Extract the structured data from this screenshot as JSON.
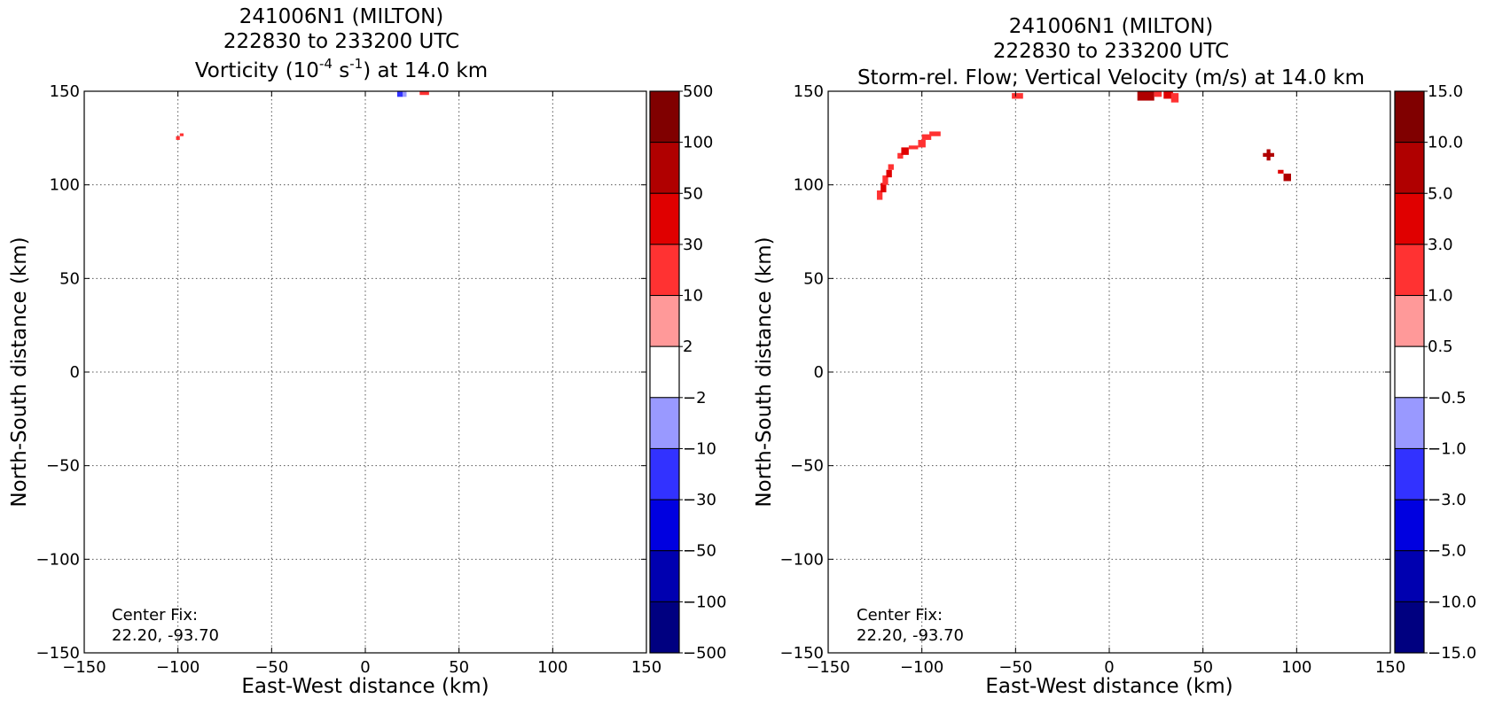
{
  "chart_data": [
    {
      "type": "heatmap",
      "title_line1": "241006N1 (MILTON)",
      "title_line2": "222830 to 233200 UTC",
      "title_line3_prefix": "Vorticity (10",
      "title_line3_exp1": "-4",
      "title_line3_mid": " s",
      "title_line3_exp2": "-1",
      "title_line3_suffix": ") at 14.0 km",
      "xlabel": "East-West distance (km)",
      "ylabel": "North-South distance (km)",
      "xlim": [
        -150,
        150
      ],
      "ylim": [
        -150,
        150
      ],
      "xticks": [
        -150,
        -100,
        -50,
        0,
        50,
        100,
        150
      ],
      "yticks": [
        -150,
        -100,
        -50,
        0,
        50,
        100,
        150
      ],
      "xtick_labels": [
        "−150",
        "−100",
        "−50",
        "0",
        "50",
        "100",
        "150"
      ],
      "ytick_labels": [
        "−150",
        "−100",
        "−50",
        "0",
        "50",
        "100",
        "150"
      ],
      "grid": true,
      "annotation_line1": "Center Fix:",
      "annotation_line2": "22.20, -93.70",
      "colorbar_labels": [
        "500",
        "100",
        "50",
        "30",
        "10",
        "2",
        "−2",
        "−10",
        "−30",
        "−50",
        "−100",
        "−500"
      ],
      "cells": [
        {
          "x": -101,
          "y": 124,
          "w": 2,
          "h": 2,
          "level": 7
        },
        {
          "x": -99,
          "y": 126,
          "w": 2,
          "h": 1.5,
          "level": 7
        },
        {
          "x": 17,
          "y": 147,
          "w": 3,
          "h": 3,
          "level": 3
        },
        {
          "x": 20,
          "y": 147,
          "w": 2,
          "h": 3,
          "level": 4
        },
        {
          "x": 29,
          "y": 148,
          "w": 5,
          "h": 2,
          "level": 7
        },
        {
          "x": 83,
          "y": 115,
          "w": 3,
          "h": 2.5,
          "level": 5
        }
      ]
    },
    {
      "type": "heatmap",
      "title_line1": "241006N1 (MILTON)",
      "title_line2": "222830 to 233200 UTC",
      "title_line3": "Storm-rel. Flow; Vertical Velocity (m/s) at 14.0 km",
      "xlabel": "East-West distance (km)",
      "ylabel": "North-South distance (km)",
      "xlim": [
        -150,
        150
      ],
      "ylim": [
        -150,
        150
      ],
      "xticks": [
        -150,
        -100,
        -50,
        0,
        50,
        100,
        150
      ],
      "yticks": [
        -150,
        -100,
        -50,
        0,
        50,
        100,
        150
      ],
      "xtick_labels": [
        "−150",
        "−100",
        "−50",
        "0",
        "50",
        "100",
        "150"
      ],
      "ytick_labels": [
        "−150",
        "−100",
        "−50",
        "0",
        "50",
        "100",
        "150"
      ],
      "grid": true,
      "annotation_line1": "Center Fix:",
      "annotation_line2": "22.20, -93.70",
      "colorbar_labels": [
        "15.0",
        "10.0",
        "5.0",
        "3.0",
        "1.0",
        "0.5",
        "−0.5",
        "−1.0",
        "−3.0",
        "−5.0",
        "−10.0",
        "−15.0"
      ],
      "cells": [
        {
          "x": -124,
          "y": 92,
          "w": 3,
          "h": 5,
          "level": 7
        },
        {
          "x": -122,
          "y": 96,
          "w": 3,
          "h": 5,
          "level": 8
        },
        {
          "x": -121,
          "y": 100,
          "w": 3,
          "h": 5,
          "level": 7
        },
        {
          "x": -119,
          "y": 104,
          "w": 3,
          "h": 4,
          "level": 8
        },
        {
          "x": -118,
          "y": 108,
          "w": 3,
          "h": 3,
          "level": 7
        },
        {
          "x": -113,
          "y": 114,
          "w": 3,
          "h": 3,
          "level": 7
        },
        {
          "x": -111,
          "y": 116,
          "w": 4,
          "h": 4,
          "level": 8
        },
        {
          "x": -107,
          "y": 119,
          "w": 5,
          "h": 2,
          "level": 7
        },
        {
          "x": -102,
          "y": 120,
          "w": 4,
          "h": 4,
          "level": 7
        },
        {
          "x": -100,
          "y": 124,
          "w": 5,
          "h": 3,
          "level": 7
        },
        {
          "x": -96,
          "y": 126,
          "w": 6,
          "h": 2.5,
          "level": 7
        },
        {
          "x": -52,
          "y": 146,
          "w": 6,
          "h": 3,
          "level": 7
        },
        {
          "x": 15,
          "y": 145,
          "w": 9,
          "h": 5,
          "level": 9
        },
        {
          "x": 24,
          "y": 147,
          "w": 4,
          "h": 3,
          "level": 7
        },
        {
          "x": 29,
          "y": 146,
          "w": 5,
          "h": 4,
          "level": 8
        },
        {
          "x": 33,
          "y": 144,
          "w": 4,
          "h": 5,
          "level": 7
        },
        {
          "x": 84,
          "y": 113,
          "w": 2,
          "h": 6,
          "level": 9
        },
        {
          "x": 82,
          "y": 115,
          "w": 6,
          "h": 2,
          "level": 9
        },
        {
          "x": 90,
          "y": 106,
          "w": 3,
          "h": 2,
          "level": 8
        },
        {
          "x": 93,
          "y": 102,
          "w": 4,
          "h": 4,
          "level": 9
        }
      ]
    }
  ],
  "colorbar_colors": [
    "#000080",
    "#0000b0",
    "#0000e0",
    "#3232ff",
    "#9999ff",
    "#ffffff",
    "#ff9999",
    "#ff3232",
    "#e00000",
    "#b00000",
    "#800000"
  ],
  "level_colors": [
    "#000080",
    "#0000b0",
    "#0000e0",
    "#3232ff",
    "#9999ff",
    "#ffffff",
    "#ff9999",
    "#ff3232",
    "#e00000",
    "#b00000",
    "#800000"
  ]
}
